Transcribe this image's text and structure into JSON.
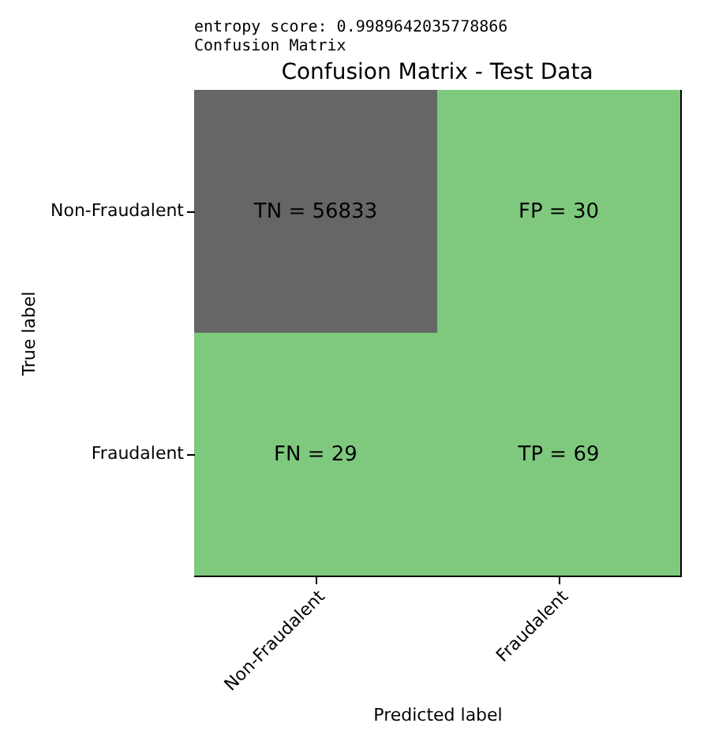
{
  "chart_data": {
    "type": "heatmap",
    "title": "Confusion Matrix - Test Data",
    "xlabel": "Predicted label",
    "ylabel": "True label",
    "annotations": [
      "entropy score: 0.9989642035778866",
      "Confusion Matrix"
    ],
    "categories": [
      "Non-Fraudalent",
      "Fraudalent"
    ],
    "y_categories": [
      "Non-Fraudalent",
      "Fraudalent"
    ],
    "cells": [
      [
        56833,
        30
      ],
      [
        29,
        69
      ]
    ],
    "cell_labels": [
      [
        "TN = 56833",
        "FP = 30"
      ],
      [
        "FN = 29",
        "TP = 69"
      ]
    ],
    "colors": [
      "#7fc97f",
      "#666666"
    ]
  }
}
